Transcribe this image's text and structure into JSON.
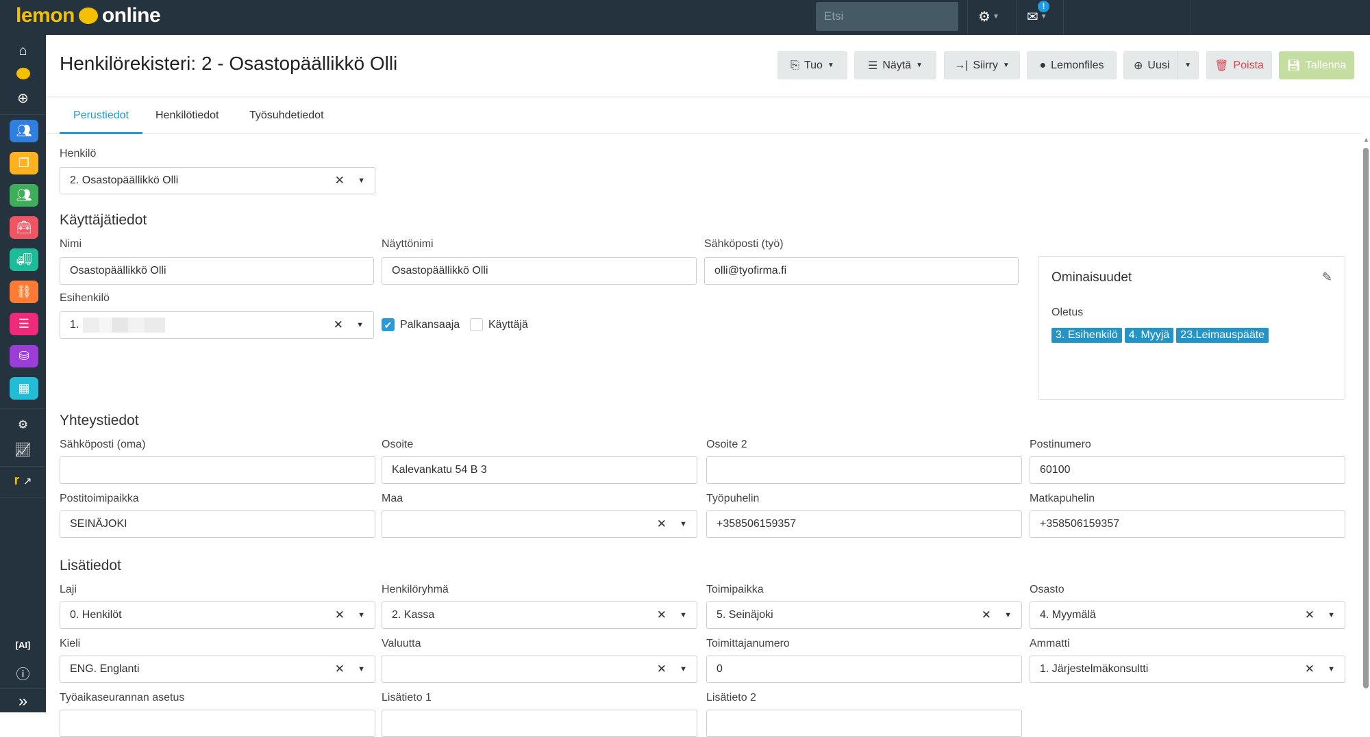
{
  "app": {
    "logo_left": "lemon",
    "logo_right": "online",
    "search_placeholder": "Etsi",
    "notification_badge": "!"
  },
  "sidebar": {
    "icons": [
      "home-icon",
      "lemon-icon",
      "add-circle-icon"
    ],
    "apps": [
      {
        "name": "people-app",
        "icon": "users-icon",
        "color": "#2f7fe0"
      },
      {
        "name": "documents-app",
        "icon": "copy-icon",
        "color": "#ffb21f"
      },
      {
        "name": "staff-app",
        "icon": "team-icon",
        "color": "#3fae5a"
      },
      {
        "name": "tools-app",
        "icon": "toolbox-icon",
        "color": "#f25562"
      },
      {
        "name": "delivery-app",
        "icon": "truck-icon",
        "color": "#1dbb9a"
      },
      {
        "name": "workflow-app",
        "icon": "flow-icon",
        "color": "#ff7b33"
      },
      {
        "name": "forms-app",
        "icon": "list-icon",
        "color": "#ee2b7b"
      },
      {
        "name": "finance-app",
        "icon": "coins-icon",
        "color": "#9b3ed8"
      },
      {
        "name": "inventory-app",
        "icon": "conveyor-icon",
        "color": "#22bcd6"
      }
    ]
  },
  "header": {
    "title": "Henkilörekisteri: 2 - Osastopäällikkö Olli",
    "buttons": {
      "tuo": "Tuo",
      "nayta": "Näytä",
      "siirry": "Siirry",
      "lemonfiles": "Lemonfiles",
      "uusi": "Uusi",
      "poista": "Poista",
      "tallenna": "Tallenna"
    }
  },
  "tabs": [
    "Perustiedot",
    "Henkilötiedot",
    "Työsuhdetiedot"
  ],
  "henkilo": {
    "label": "Henkilö",
    "value": "2. Osastopäällikkö Olli"
  },
  "kayttaja": {
    "heading": "Käyttäjätiedot",
    "nimi": {
      "label": "Nimi",
      "value": "Osastopäällikkö Olli"
    },
    "nayttonimi": {
      "label": "Näyttönimi",
      "value": "Osastopäällikkö Olli"
    },
    "sahkoposti": {
      "label": "Sähköposti (työ)",
      "value": "olli@tyofirma.fi"
    },
    "esihenkilo": {
      "label": "Esihenkilö",
      "value": "1."
    },
    "palkansaaja": {
      "label": "Palkansaaja",
      "checked": true
    },
    "kayttaja_cb": {
      "label": "Käyttäjä",
      "checked": false
    }
  },
  "ominaisuudet": {
    "title": "Ominaisuudet",
    "group": "Oletus",
    "tags": [
      "3. Esihenkilö",
      "4. Myyjä",
      "23.Leimauspääte"
    ]
  },
  "sections": [
    {
      "heading": "Yhteystiedot",
      "rows": [
        [
          {
            "label": "Sähköposti (oma)",
            "value": "",
            "type": "text"
          },
          {
            "label": "Osoite",
            "value": "Kalevankatu 54 B 3",
            "type": "text"
          },
          {
            "label": "Osoite 2",
            "value": "",
            "type": "text"
          },
          {
            "label": "Postinumero",
            "value": "60100",
            "type": "text"
          }
        ],
        [
          {
            "label": "Postitoimipaikka",
            "value": "SEINÄJOKI",
            "type": "text"
          },
          {
            "label": "Maa",
            "value": "",
            "type": "select"
          },
          {
            "label": "Työpuhelin",
            "value": "+358506159357",
            "type": "text"
          },
          {
            "label": "Matkapuhelin",
            "value": "+358506159357",
            "type": "text"
          }
        ]
      ]
    },
    {
      "heading": "Lisätiedot",
      "rows": [
        [
          {
            "label": "Laji",
            "value": "0. Henkilöt",
            "type": "select"
          },
          {
            "label": "Henkilöryhmä",
            "value": "2. Kassa",
            "type": "select"
          },
          {
            "label": "Toimipaikka",
            "value": "5. Seinäjoki",
            "type": "select"
          },
          {
            "label": "Osasto",
            "value": "4. Myymälä",
            "type": "select"
          }
        ],
        [
          {
            "label": "Kieli",
            "value": "ENG. Englanti",
            "type": "select"
          },
          {
            "label": "Valuutta",
            "value": "",
            "type": "select"
          },
          {
            "label": "Toimittajanumero",
            "value": "0",
            "type": "text"
          },
          {
            "label": "Ammatti",
            "value": "1. Järjestelmäkonsultti",
            "type": "select"
          }
        ],
        [
          {
            "label": "Työaikaseurannan asetus",
            "value": "",
            "type": "text"
          },
          {
            "label": "Lisätieto 1",
            "value": "",
            "type": "text"
          },
          {
            "label": "Lisätieto 2",
            "value": "",
            "type": "text"
          }
        ]
      ]
    }
  ],
  "colors": {
    "topbar": "#24333d",
    "accent": "#1e9bd7",
    "danger": "#e0434f",
    "save": "#c3dea0",
    "tag": "#2394c8"
  }
}
